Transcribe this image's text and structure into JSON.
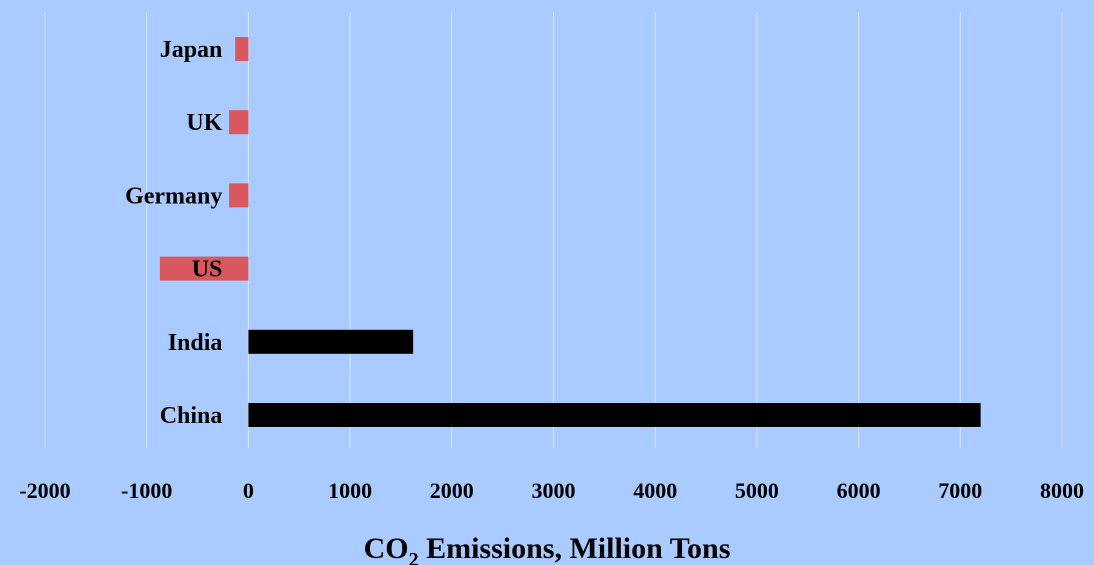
{
  "chart_data": {
    "type": "bar",
    "orientation": "horizontal",
    "categories": [
      "Japan",
      "UK",
      "Germany",
      "US",
      "India",
      "China"
    ],
    "values": [
      -130,
      -190,
      -190,
      -870,
      1620,
      7200
    ],
    "bar_colors": [
      "#d9575f",
      "#d9575f",
      "#d9575f",
      "#d9575f",
      "#000000",
      "#000000"
    ],
    "xlim": [
      -2000,
      8000
    ],
    "xticks": [
      "-2000",
      "-1000",
      "0",
      "1000",
      "2000",
      "3000",
      "4000",
      "5000",
      "6000",
      "7000",
      "8000"
    ],
    "xticks_values": [
      -2000,
      -1000,
      0,
      1000,
      2000,
      3000,
      4000,
      5000,
      6000,
      7000,
      8000
    ],
    "xlabel_main": "CO",
    "xlabel_sub": "2",
    "xlabel_rest": " Emissions, Million Tons",
    "grid": "vertical",
    "background": "#a9cbff",
    "grid_color": "#d8e6ff"
  }
}
